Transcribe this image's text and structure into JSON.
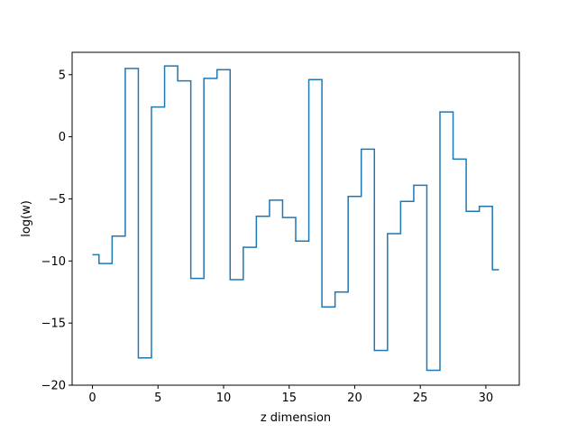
{
  "chart_data": {
    "type": "line",
    "drawstyle": "steps-mid",
    "title": "",
    "xlabel": "z dimension",
    "ylabel": "log(w)",
    "xlim": [
      -1.55,
      32.55
    ],
    "ylim": [
      -20,
      6.8
    ],
    "xticks": [
      0,
      5,
      10,
      15,
      20,
      25,
      30
    ],
    "yticks": [
      -20,
      -15,
      -10,
      -5,
      0,
      5
    ],
    "grid": false,
    "legend": "none",
    "series": [
      {
        "color": "#1f77b4",
        "x": [
          0,
          1,
          2,
          3,
          4,
          5,
          6,
          7,
          8,
          9,
          10,
          11,
          12,
          13,
          14,
          15,
          16,
          17,
          18,
          19,
          20,
          21,
          22,
          23,
          24,
          25,
          26,
          27,
          28,
          29,
          30,
          31
        ],
        "y": [
          -9.5,
          -10.2,
          -8.0,
          5.5,
          -17.8,
          2.4,
          5.7,
          4.5,
          -11.4,
          4.7,
          5.4,
          -11.5,
          -8.9,
          -6.4,
          -5.1,
          -6.5,
          -8.4,
          4.6,
          -13.7,
          -12.5,
          -4.8,
          -1.0,
          -17.2,
          -7.8,
          -5.2,
          -3.9,
          -18.8,
          2.0,
          -1.8,
          -6.0,
          -5.6,
          -10.7
        ]
      }
    ]
  }
}
